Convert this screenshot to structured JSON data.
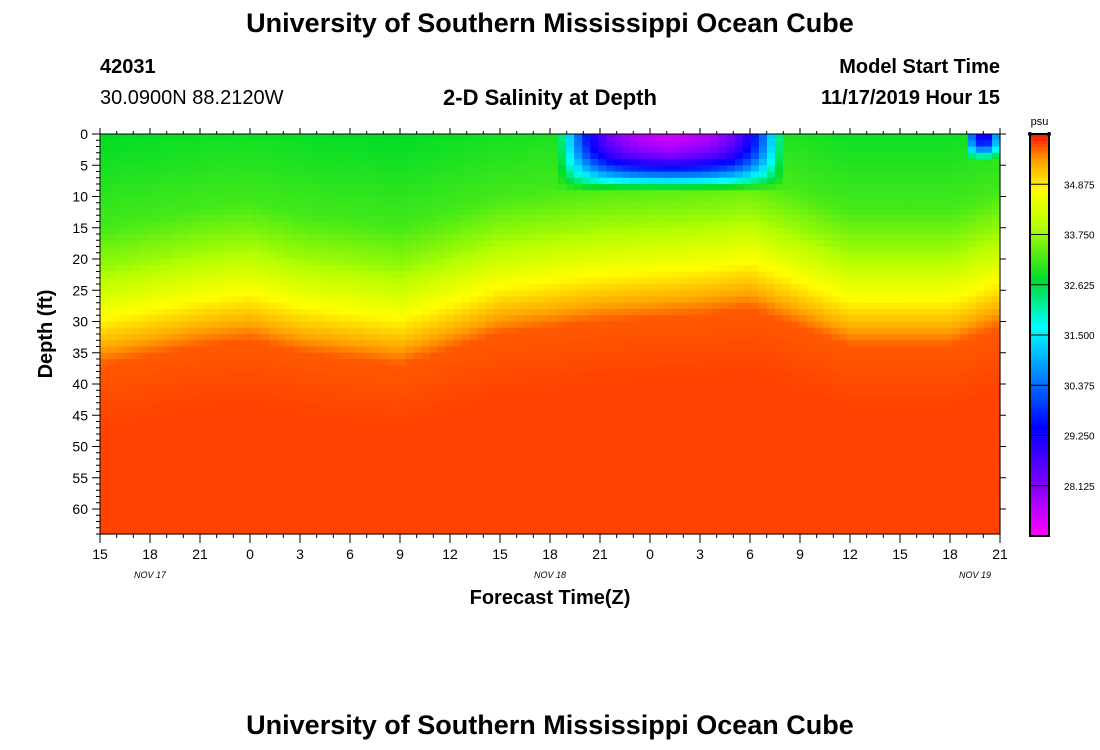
{
  "header": {
    "title": "University of Southern Mississippi Ocean Cube",
    "station_id": "42031",
    "coords": "30.0900N 88.2120W",
    "plot_title": "2-D Salinity at Depth",
    "model_label": "Model Start Time",
    "model_time": "11/17/2019 Hour 15"
  },
  "footer": {
    "title": "University of Southern Mississippi Ocean Cube"
  },
  "chart_data": {
    "type": "heatmap",
    "title": "2-D Salinity at Depth",
    "xlabel": "Forecast Time(Z)",
    "ylabel": "Depth (ft)",
    "x_ticks": [
      "15",
      "18",
      "21",
      "0",
      "3",
      "6",
      "9",
      "12",
      "15",
      "18",
      "21",
      "0",
      "3",
      "6",
      "9",
      "12",
      "15",
      "18",
      "21"
    ],
    "date_labels": [
      {
        "label": "NOV 17",
        "hour_index": 1
      },
      {
        "label": "NOV 18",
        "hour_index": 9
      },
      {
        "label": "NOV 19",
        "hour_index": 17.5
      }
    ],
    "x_range_hours": [
      0,
      54
    ],
    "y_ticks": [
      0,
      5,
      10,
      15,
      20,
      25,
      30,
      35,
      40,
      45,
      50,
      55,
      60
    ],
    "ylim": [
      0,
      64
    ],
    "colorbar": {
      "unit": "psu",
      "min": 27.0,
      "max": 36.0,
      "tick_values": [
        34.875,
        33.75,
        32.625,
        31.5,
        30.375,
        29.25,
        28.125
      ],
      "tick_labels": [
        "34.875",
        "33.750",
        "32.625",
        "31.500",
        "30.375",
        "29.250",
        "28.125"
      ]
    },
    "field_summary": {
      "deep_salinity_psu": 35.8,
      "halocline_depth_ft_by_hour": [
        [
          0,
          19
        ],
        [
          6,
          16
        ],
        [
          9,
          15
        ],
        [
          12,
          17
        ],
        [
          18,
          19
        ],
        [
          24,
          14
        ],
        [
          30,
          12
        ],
        [
          36,
          11
        ],
        [
          39,
          10
        ],
        [
          45,
          16
        ],
        [
          51,
          16
        ],
        [
          54,
          13
        ]
      ],
      "fresh_lens": [
        {
          "start_hour": 27.5,
          "end_hour": 41,
          "min_salinity_psu": 27.4,
          "depth_ft": 9
        },
        {
          "start_hour": 52,
          "end_hour": 54,
          "min_salinity_psu": 29.0,
          "depth_ft": 4
        }
      ]
    }
  }
}
